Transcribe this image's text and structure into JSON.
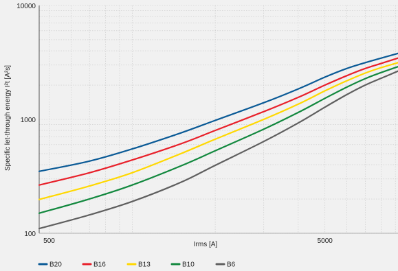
{
  "chart_data": {
    "type": "line",
    "xlabel": "Irms [A]",
    "ylabel": "Specific let-through energy I²t [A²s]",
    "x_scale": "log",
    "y_scale": "log",
    "xlim": [
      460,
      9200
    ],
    "ylim": [
      100,
      10000
    ],
    "x_tick_labels": [
      "500",
      "5000"
    ],
    "y_tick_labels": [
      "100",
      "1000",
      "10000"
    ],
    "grid": true,
    "legend_position": "bottom-left",
    "series": [
      {
        "name": "B20",
        "color": "#0a5a96",
        "x": [
          460,
          700,
          1000,
          1500,
          2000,
          3000,
          4000,
          5000,
          6000,
          7000,
          8000,
          9200
        ],
        "y": [
          350,
          430,
          550,
          760,
          980,
          1400,
          1850,
          2350,
          2800,
          3150,
          3450,
          3800
        ]
      },
      {
        "name": "B16",
        "color": "#e8202a",
        "x": [
          460,
          700,
          1000,
          1500,
          2000,
          3000,
          4000,
          5000,
          6000,
          7000,
          8000,
          9200
        ],
        "y": [
          265,
          340,
          440,
          610,
          800,
          1170,
          1560,
          2000,
          2420,
          2800,
          3100,
          3450
        ]
      },
      {
        "name": "B13",
        "color": "#ffd800",
        "x": [
          460,
          700,
          1000,
          1500,
          2000,
          3000,
          4000,
          5000,
          6000,
          7000,
          8000,
          9200
        ],
        "y": [
          198,
          260,
          340,
          500,
          670,
          1000,
          1360,
          1780,
          2180,
          2550,
          2850,
          3150
        ]
      },
      {
        "name": "B10",
        "color": "#12883e",
        "x": [
          460,
          700,
          1000,
          1500,
          2000,
          3000,
          4000,
          5000,
          6000,
          7000,
          8000,
          9200
        ],
        "y": [
          150,
          200,
          265,
          390,
          530,
          820,
          1150,
          1530,
          1920,
          2280,
          2580,
          2900
        ]
      },
      {
        "name": "B6",
        "color": "#5f5f5f",
        "x": [
          460,
          700,
          1000,
          1500,
          2000,
          3000,
          4000,
          5000,
          6000,
          7000,
          8000,
          9200
        ],
        "y": [
          110,
          145,
          190,
          280,
          395,
          640,
          930,
          1280,
          1650,
          2000,
          2300,
          2650
        ]
      }
    ]
  }
}
